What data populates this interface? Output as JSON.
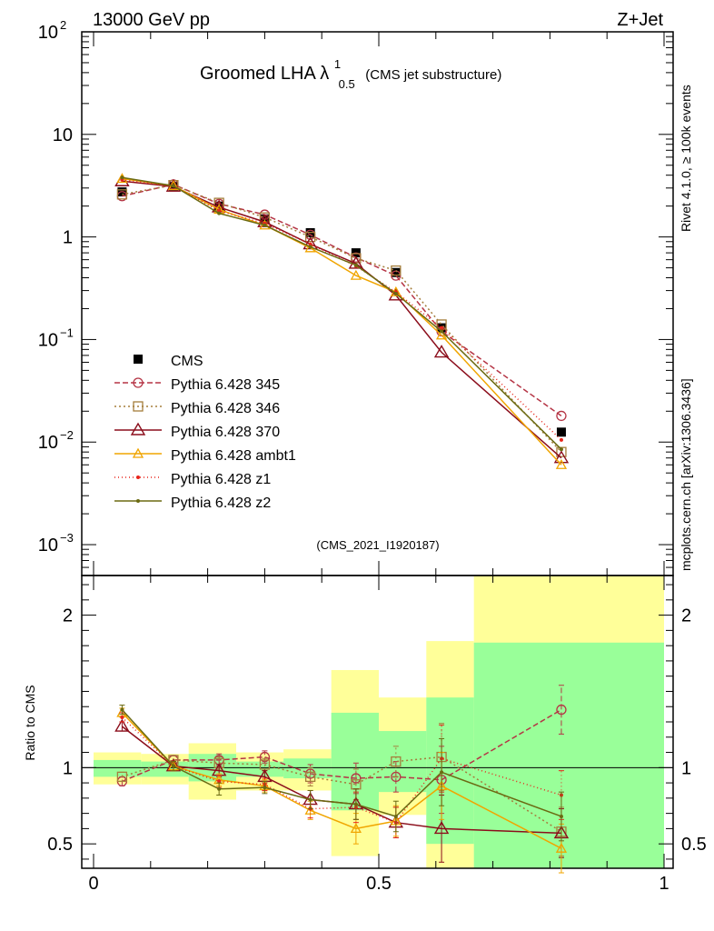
{
  "header": {
    "left": "13000 GeV pp",
    "right": "Z+Jet"
  },
  "side_labels": {
    "rivet": "Rivet 4.1.0, ≥ 100k events",
    "mcplots": "mcplots.cern.ch [arXiv:1306.3436]"
  },
  "chart_data": {
    "type": "line",
    "title": "Groomed LHA λ",
    "title_sup": "1",
    "title_sub": "0.5",
    "title_suffix": "(CMS jet substructure)",
    "watermark": "(CMS_2021_I1920187)",
    "x_ticks": [
      "0",
      "0.5",
      "1"
    ],
    "xlim": [
      0,
      1
    ],
    "main": {
      "yscale": "log",
      "ylim": [
        0.0005,
        100
      ],
      "y_ticks": [
        {
          "v": 100,
          "base": "10",
          "exp": "2"
        },
        {
          "v": 10,
          "base": "10",
          "exp": ""
        },
        {
          "v": 1,
          "base": "1",
          "exp": ""
        },
        {
          "v": 0.1,
          "base": "10",
          "exp": "−1"
        },
        {
          "v": 0.01,
          "base": "10",
          "exp": "−2"
        },
        {
          "v": 0.001,
          "base": "10",
          "exp": "−3"
        }
      ]
    },
    "ratio": {
      "ylabel": "Ratio to CMS",
      "ylim": [
        0.34,
        2.26
      ],
      "y_ticks": [
        "0.5",
        "1",
        "2"
      ],
      "band_yellow": [
        {
          "x0": 0.0,
          "x1": 0.0833,
          "lo": 0.89,
          "hi": 1.1
        },
        {
          "x0": 0.0833,
          "x1": 0.1667,
          "lo": 0.89,
          "hi": 1.09
        },
        {
          "x0": 0.1667,
          "x1": 0.25,
          "lo": 0.79,
          "hi": 1.16
        },
        {
          "x0": 0.25,
          "x1": 0.333,
          "lo": 0.85,
          "hi": 1.1
        },
        {
          "x0": 0.333,
          "x1": 0.4167,
          "lo": 0.85,
          "hi": 1.12
        },
        {
          "x0": 0.4167,
          "x1": 0.5,
          "lo": 0.42,
          "hi": 1.64
        },
        {
          "x0": 0.5,
          "x1": 0.5833,
          "lo": 0.69,
          "hi": 1.46
        },
        {
          "x0": 0.5833,
          "x1": 0.6667,
          "lo": 0.34,
          "hi": 1.83
        },
        {
          "x0": 0.6667,
          "x1": 1.0,
          "lo": 0.34,
          "hi": 2.26
        }
      ],
      "band_green": [
        {
          "x0": 0.0,
          "x1": 0.0833,
          "lo": 0.94,
          "hi": 1.05
        },
        {
          "x0": 0.0833,
          "x1": 0.1667,
          "lo": 0.94,
          "hi": 1.04
        },
        {
          "x0": 0.1667,
          "x1": 0.25,
          "lo": 0.91,
          "hi": 1.09
        },
        {
          "x0": 0.25,
          "x1": 0.333,
          "lo": 0.94,
          "hi": 1.04
        },
        {
          "x0": 0.333,
          "x1": 0.4167,
          "lo": 0.93,
          "hi": 1.06
        },
        {
          "x0": 0.4167,
          "x1": 0.5,
          "lo": 0.72,
          "hi": 1.36
        },
        {
          "x0": 0.5,
          "x1": 0.5833,
          "lo": 0.84,
          "hi": 1.24
        },
        {
          "x0": 0.5833,
          "x1": 0.6667,
          "lo": 0.5,
          "hi": 1.46
        },
        {
          "x0": 0.6667,
          "x1": 1.0,
          "lo": 0.34,
          "hi": 1.82
        }
      ]
    },
    "x": [
      0.05,
      0.14,
      0.22,
      0.3,
      0.38,
      0.46,
      0.53,
      0.61,
      0.82
    ],
    "series": [
      {
        "name": "CMS",
        "color": "#000000",
        "dash": "",
        "marker": "square",
        "values": [
          2.75,
          3.1,
          2.0,
          1.5,
          1.1,
          0.7,
          0.45,
          0.13,
          0.0125
        ],
        "ratio": null
      },
      {
        "name": "Pythia 6.428 345",
        "color": "#b53545",
        "dash": "6,3",
        "marker": "circle",
        "values": [
          2.5,
          3.25,
          2.1,
          1.65,
          1.05,
          0.63,
          0.42,
          0.12,
          0.018
        ],
        "ratio": [
          0.91,
          1.05,
          1.05,
          1.07,
          0.96,
          0.93,
          0.94,
          0.92,
          1.38
        ],
        "ratio_err": [
          0.03,
          0.03,
          0.04,
          0.04,
          0.06,
          0.1,
          0.1,
          0.22,
          0.16
        ]
      },
      {
        "name": "Pythia 6.428 346",
        "color": "#a57e3c",
        "dash": "2,3",
        "marker": "square-open",
        "values": [
          2.6,
          3.2,
          2.15,
          1.55,
          1.0,
          0.62,
          0.47,
          0.14,
          0.008
        ],
        "ratio": [
          0.94,
          1.05,
          1.03,
          1.02,
          0.94,
          0.89,
          1.04,
          1.07,
          0.58
        ],
        "ratio_err": [
          0.03,
          0.03,
          0.04,
          0.04,
          0.06,
          0.1,
          0.1,
          0.22,
          0.16
        ]
      },
      {
        "name": "Pythia 6.428 370",
        "color": "#8b0d1b",
        "dash": "",
        "marker": "triangle",
        "values": [
          3.5,
          3.1,
          1.95,
          1.4,
          0.85,
          0.55,
          0.27,
          0.075,
          0.007
        ],
        "ratio": [
          1.27,
          1.01,
          0.98,
          0.94,
          0.79,
          0.76,
          0.64,
          0.6,
          0.57
        ],
        "ratio_err": [
          0.03,
          0.03,
          0.04,
          0.04,
          0.06,
          0.1,
          0.1,
          0.22,
          0.16
        ]
      },
      {
        "name": "Pythia 6.428 ambt1",
        "color": "#f0a500",
        "dash": "",
        "marker": "triangle-small",
        "values": [
          3.7,
          3.15,
          1.85,
          1.3,
          0.78,
          0.42,
          0.29,
          0.11,
          0.006
        ],
        "ratio": [
          1.36,
          1.01,
          0.92,
          0.88,
          0.72,
          0.6,
          0.65,
          0.88,
          0.47
        ],
        "ratio_err": [
          0.03,
          0.03,
          0.04,
          0.04,
          0.06,
          0.1,
          0.1,
          0.22,
          0.16
        ]
      },
      {
        "name": "Pythia 6.428 z1",
        "color": "#e8251b",
        "dash": "1,3",
        "marker": "dot",
        "values": [
          3.6,
          3.15,
          1.8,
          1.35,
          0.85,
          0.52,
          0.29,
          0.13,
          0.0105
        ],
        "ratio": [
          1.33,
          1.01,
          0.91,
          0.89,
          0.73,
          0.74,
          0.64,
          1.06,
          0.82
        ],
        "ratio_err": [
          0.03,
          0.03,
          0.04,
          0.04,
          0.06,
          0.1,
          0.1,
          0.22,
          0.16
        ]
      },
      {
        "name": "Pythia 6.428 z2",
        "color": "#6b6a12",
        "dash": "",
        "marker": "dot",
        "values": [
          3.8,
          3.15,
          1.7,
          1.3,
          0.8,
          0.53,
          0.28,
          0.12,
          0.0085
        ],
        "ratio": [
          1.38,
          1.01,
          0.86,
          0.87,
          0.79,
          0.76,
          0.68,
          0.97,
          0.68
        ],
        "ratio_err": [
          0.03,
          0.03,
          0.04,
          0.04,
          0.06,
          0.1,
          0.1,
          0.22,
          0.16
        ]
      }
    ]
  }
}
